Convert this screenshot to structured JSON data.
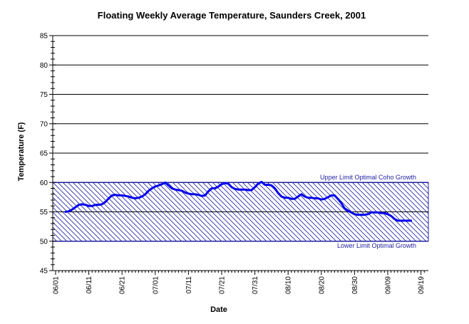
{
  "chart_data": {
    "type": "line",
    "title": "Floating Weekly Average Temperature, Saunders Creek, 2001",
    "xlabel": "Date",
    "ylabel": "Temperature (F)",
    "ylim": [
      45,
      85
    ],
    "yticks": [
      45,
      50,
      55,
      60,
      65,
      70,
      75,
      80,
      85
    ],
    "xticks": [
      "06/01",
      "06/11",
      "06/21",
      "07/01",
      "07/11",
      "07/21",
      "07/31",
      "08/10",
      "08/20",
      "08/30",
      "09/09",
      "09/19"
    ],
    "grid": "horizontal",
    "band": {
      "lower": 50,
      "upper": 60,
      "upper_label": "Upper Limit Optimal Coho Growth",
      "lower_label": "Lower Limit Optimal Growth",
      "color": "#1f1fa0"
    },
    "series": [
      {
        "color": "#0000ee",
        "x": [
          "06/04",
          "06/05",
          "06/06",
          "06/07",
          "06/08",
          "06/09",
          "06/10",
          "06/11",
          "06/12",
          "06/13",
          "06/14",
          "06/15",
          "06/16",
          "06/17",
          "06/18",
          "06/19",
          "06/20",
          "06/21",
          "06/22",
          "06/23",
          "06/24",
          "06/25",
          "06/26",
          "06/27",
          "06/28",
          "06/29",
          "06/30",
          "07/01",
          "07/02",
          "07/03",
          "07/04",
          "07/05",
          "07/06",
          "07/07",
          "07/08",
          "07/09",
          "07/10",
          "07/11",
          "07/12",
          "07/13",
          "07/14",
          "07/15",
          "07/16",
          "07/17",
          "07/18",
          "07/19",
          "07/20",
          "07/21",
          "07/22",
          "07/23",
          "07/24",
          "07/25",
          "07/26",
          "07/27",
          "07/28",
          "07/29",
          "07/30",
          "07/31",
          "08/01",
          "08/02",
          "08/03",
          "08/04",
          "08/05",
          "08/06",
          "08/07",
          "08/08",
          "08/09",
          "08/10",
          "08/11",
          "08/12",
          "08/13",
          "08/14",
          "08/15",
          "08/16",
          "08/17",
          "08/18",
          "08/19",
          "08/20",
          "08/21",
          "08/22",
          "08/23",
          "08/24",
          "08/25",
          "08/26",
          "08/27",
          "08/28",
          "08/29",
          "08/30",
          "08/31",
          "09/01",
          "09/02",
          "09/03",
          "09/04",
          "09/05",
          "09/06",
          "09/07",
          "09/08",
          "09/09",
          "09/10",
          "09/11",
          "09/12",
          "09/13",
          "09/14",
          "09/15",
          "09/16"
        ],
        "values": [
          55.0,
          55.1,
          55.4,
          55.8,
          56.2,
          56.3,
          56.2,
          56.0,
          56.0,
          56.2,
          56.2,
          56.3,
          56.7,
          57.3,
          57.8,
          57.9,
          57.8,
          57.8,
          57.7,
          57.6,
          57.4,
          57.3,
          57.4,
          57.6,
          58.0,
          58.6,
          59.0,
          59.3,
          59.5,
          59.7,
          60.0,
          59.5,
          59.0,
          58.8,
          58.7,
          58.6,
          58.3,
          58.1,
          58.0,
          58.0,
          57.9,
          57.7,
          57.8,
          58.5,
          59.0,
          59.0,
          59.3,
          59.7,
          59.9,
          59.8,
          59.2,
          58.9,
          58.8,
          58.8,
          58.8,
          58.7,
          58.7,
          59.2,
          59.8,
          60.1,
          59.6,
          59.6,
          59.5,
          59.0,
          58.2,
          57.6,
          57.4,
          57.4,
          57.2,
          57.2,
          57.6,
          58.0,
          57.6,
          57.4,
          57.4,
          57.3,
          57.3,
          57.1,
          57.2,
          57.5,
          57.8,
          57.8,
          57.2,
          56.5,
          55.6,
          55.2,
          54.9,
          54.6,
          54.5,
          54.5,
          54.5,
          54.6,
          54.9,
          54.9,
          54.9,
          54.8,
          54.8,
          54.6,
          54.3,
          53.8,
          53.5,
          53.5,
          53.5,
          53.5,
          53.5
        ]
      }
    ]
  }
}
